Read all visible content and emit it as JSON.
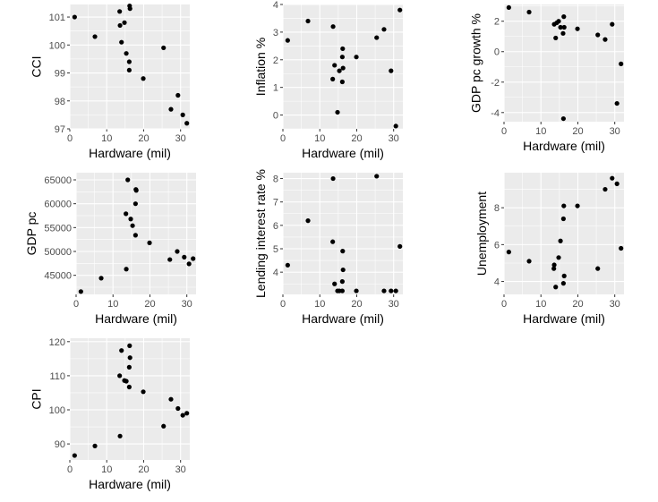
{
  "chart_data": [
    {
      "type": "scatter",
      "xlabel": "Hardware (mil)",
      "ylabel": "CCI",
      "xlim": [
        0,
        32.5
      ],
      "ylim": [
        97,
        101.45
      ],
      "xticks": [
        0,
        10,
        20,
        30
      ],
      "yticks": [
        97,
        98,
        99,
        100,
        101
      ],
      "grid": true,
      "points": [
        [
          1.3,
          101.0
        ],
        [
          6.8,
          100.3
        ],
        [
          13.5,
          101.2
        ],
        [
          13.6,
          100.7
        ],
        [
          14.0,
          100.1
        ],
        [
          14.8,
          100.8
        ],
        [
          15.3,
          99.7
        ],
        [
          16.2,
          101.4
        ],
        [
          16.3,
          101.3
        ],
        [
          16.1,
          99.4
        ],
        [
          16.1,
          99.1
        ],
        [
          19.9,
          98.8
        ],
        [
          25.4,
          99.9
        ],
        [
          27.4,
          97.7
        ],
        [
          29.3,
          98.2
        ],
        [
          30.6,
          97.5
        ],
        [
          31.7,
          97.2
        ]
      ]
    },
    {
      "type": "scatter",
      "xlabel": "Hardware (mil)",
      "ylabel": "Inflation %",
      "xlim": [
        0,
        32.5
      ],
      "ylim": [
        -0.5,
        4
      ],
      "xticks": [
        0,
        10,
        20,
        30
      ],
      "yticks": [
        0,
        1,
        2,
        3,
        4
      ],
      "grid": true,
      "points": [
        [
          1.3,
          2.7
        ],
        [
          6.8,
          3.4
        ],
        [
          13.6,
          3.2
        ],
        [
          13.5,
          1.3
        ],
        [
          14.0,
          1.8
        ],
        [
          14.8,
          0.1
        ],
        [
          15.3,
          1.6
        ],
        [
          16.2,
          2.4
        ],
        [
          16.1,
          2.1
        ],
        [
          16.3,
          1.7
        ],
        [
          16.1,
          1.2
        ],
        [
          19.9,
          2.1
        ],
        [
          25.4,
          2.8
        ],
        [
          27.4,
          3.1
        ],
        [
          29.3,
          1.6
        ],
        [
          30.6,
          -0.4
        ],
        [
          31.7,
          3.8
        ]
      ]
    },
    {
      "type": "scatter",
      "xlabel": "Hardware (mil)",
      "ylabel": "GDP pc growth %",
      "xlim": [
        0,
        32.5
      ],
      "ylim": [
        -4.6,
        3.1
      ],
      "xticks": [
        0,
        10,
        20,
        30
      ],
      "yticks": [
        -4,
        -2,
        0,
        2
      ],
      "grid": true,
      "points": [
        [
          1.3,
          2.9
        ],
        [
          6.8,
          2.6
        ],
        [
          13.6,
          1.8
        ],
        [
          14.0,
          0.9
        ],
        [
          14.3,
          1.9
        ],
        [
          14.8,
          2.0
        ],
        [
          15.3,
          1.6
        ],
        [
          16.0,
          1.2
        ],
        [
          16.2,
          2.3
        ],
        [
          16.3,
          1.6
        ],
        [
          16.1,
          -4.4
        ],
        [
          19.9,
          1.5
        ],
        [
          25.4,
          1.1
        ],
        [
          27.4,
          0.8
        ],
        [
          29.3,
          1.8
        ],
        [
          30.6,
          -3.4
        ],
        [
          31.7,
          -0.8
        ]
      ]
    },
    {
      "type": "scatter",
      "xlabel": "Hardware (mil)",
      "ylabel": "GDP pc",
      "xlim": [
        0,
        32.5
      ],
      "ylim": [
        41000,
        66500
      ],
      "xticks": [
        0,
        10,
        20,
        30
      ],
      "yticks": [
        45000,
        50000,
        55000,
        60000,
        65000
      ],
      "grid": true,
      "points": [
        [
          1.3,
          41600
        ],
        [
          6.8,
          44400
        ],
        [
          13.6,
          46300
        ],
        [
          13.5,
          57900
        ],
        [
          14.0,
          65000
        ],
        [
          14.8,
          56800
        ],
        [
          15.3,
          55400
        ],
        [
          16.2,
          63000
        ],
        [
          16.3,
          62800
        ],
        [
          16.1,
          60000
        ],
        [
          16.1,
          53400
        ],
        [
          19.9,
          51800
        ],
        [
          25.4,
          48300
        ],
        [
          27.4,
          50000
        ],
        [
          29.3,
          48800
        ],
        [
          30.6,
          47400
        ],
        [
          31.7,
          48500
        ]
      ]
    },
    {
      "type": "scatter",
      "xlabel": "Hardware (mil)",
      "ylabel": "Lending interest rate %",
      "xlim": [
        0,
        32.5
      ],
      "ylim": [
        3.05,
        8.25
      ],
      "xticks": [
        0,
        10,
        20,
        30
      ],
      "yticks": [
        4,
        5,
        6,
        7,
        8
      ],
      "grid": true,
      "points": [
        [
          1.3,
          4.3
        ],
        [
          6.8,
          6.2
        ],
        [
          13.6,
          8.0
        ],
        [
          13.5,
          5.3
        ],
        [
          14.0,
          3.5
        ],
        [
          14.8,
          3.2
        ],
        [
          15.3,
          3.2
        ],
        [
          16.2,
          4.9
        ],
        [
          16.3,
          4.1
        ],
        [
          16.1,
          3.6
        ],
        [
          16.1,
          3.2
        ],
        [
          19.9,
          3.2
        ],
        [
          25.4,
          8.1
        ],
        [
          27.4,
          3.2
        ],
        [
          29.3,
          3.2
        ],
        [
          30.6,
          3.2
        ],
        [
          31.7,
          5.1
        ]
      ]
    },
    {
      "type": "scatter",
      "xlabel": "Hardware (mil)",
      "ylabel": "Unemployment",
      "xlim": [
        0,
        32.5
      ],
      "ylim": [
        3.3,
        9.9
      ],
      "xticks": [
        0,
        10,
        20,
        30
      ],
      "yticks": [
        4,
        6,
        8
      ],
      "grid": true,
      "points": [
        [
          1.3,
          5.6
        ],
        [
          6.8,
          5.1
        ],
        [
          13.6,
          4.9
        ],
        [
          13.5,
          4.7
        ],
        [
          14.0,
          3.7
        ],
        [
          14.8,
          5.3
        ],
        [
          15.3,
          6.2
        ],
        [
          16.2,
          8.1
        ],
        [
          16.1,
          7.4
        ],
        [
          16.3,
          4.3
        ],
        [
          16.1,
          3.9
        ],
        [
          19.9,
          8.1
        ],
        [
          25.4,
          4.7
        ],
        [
          27.4,
          9.0
        ],
        [
          29.3,
          9.6
        ],
        [
          30.6,
          9.3
        ],
        [
          31.7,
          5.8
        ]
      ]
    },
    {
      "type": "scatter",
      "xlabel": "Hardware (mil)",
      "ylabel": "CPI",
      "xlim": [
        0,
        32.5
      ],
      "ylim": [
        85.3,
        121.0
      ],
      "xticks": [
        0,
        10,
        20,
        30
      ],
      "yticks": [
        90,
        100,
        110,
        120
      ],
      "grid": true,
      "points": [
        [
          1.3,
          86.6
        ],
        [
          6.8,
          89.4
        ],
        [
          13.6,
          92.3
        ],
        [
          13.5,
          110.0
        ],
        [
          14.0,
          117.4
        ],
        [
          14.8,
          108.6
        ],
        [
          15.3,
          108.4
        ],
        [
          16.2,
          118.8
        ],
        [
          16.3,
          115.3
        ],
        [
          16.1,
          112.5
        ],
        [
          16.1,
          106.7
        ],
        [
          19.9,
          105.3
        ],
        [
          25.4,
          95.2
        ],
        [
          27.4,
          103.1
        ],
        [
          29.3,
          100.4
        ],
        [
          30.6,
          98.4
        ],
        [
          31.7,
          99.0
        ]
      ]
    }
  ]
}
